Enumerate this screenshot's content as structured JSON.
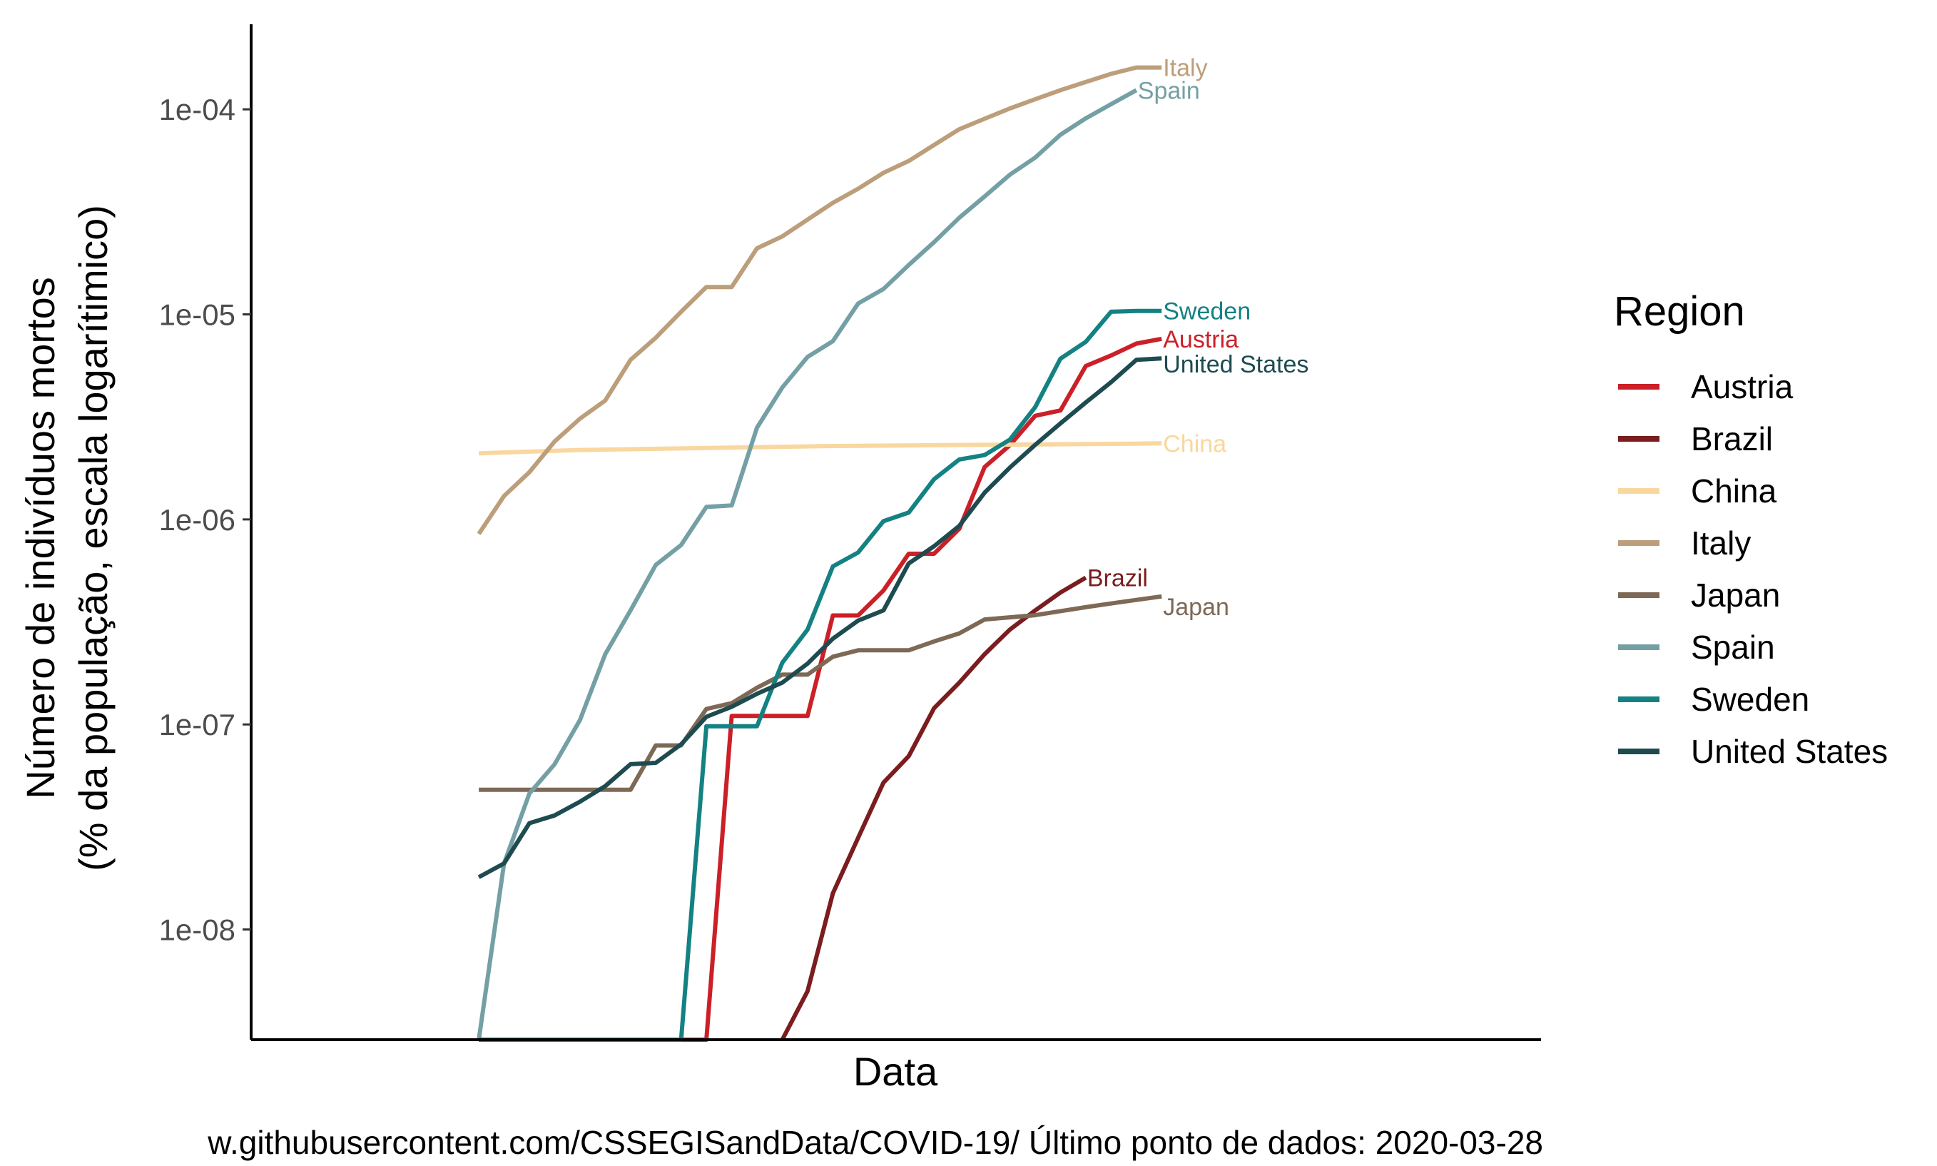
{
  "chart_data": {
    "type": "line",
    "y_scale": "log10",
    "xlabel": "Data",
    "ylabel_line1": "Número de indivíduos mortos",
    "ylabel_line2": "(% da população, escala logarítimico)",
    "caption": "w.githubusercontent.com/CSSEGISandData/COVID-19/ Último ponto de dados:  2020-03-28",
    "x_tick_labels": [],
    "y_ticks": [
      1e-08,
      1e-07,
      1e-06,
      1e-05,
      0.0001
    ],
    "y_tick_labels": [
      "1e-08",
      "1e-07",
      "1e-06",
      "1e-05",
      "1e-04"
    ],
    "x_range": [
      2,
      59
    ],
    "ylim": [
      2.9e-09,
      0.00026
    ],
    "legend": {
      "title": "Region",
      "position": "right"
    },
    "grid": false,
    "series": [
      {
        "name": "Austria",
        "color": "#CB2027",
        "label_offset": 0,
        "x": [
          20,
          21,
          22,
          23,
          24,
          25,
          26,
          27,
          28,
          29,
          30,
          31,
          32,
          33,
          34,
          35,
          36,
          37,
          38,
          39,
          40,
          41,
          42,
          43,
          44,
          45,
          46,
          47,
          48,
          49,
          50,
          51,
          52,
          53,
          54,
          55
        ],
        "y": [
          null,
          null,
          null,
          null,
          null,
          null,
          null,
          null,
          null,
          null,
          1.1e-07,
          1.1e-07,
          1.1e-07,
          1.1e-07,
          1.1e-07,
          1.1e-07,
          3.4e-07,
          3.4e-07,
          4.5e-07,
          6.8e-07,
          6.8e-07,
          9e-07,
          1.8e-06,
          2.3e-06,
          3.2e-06,
          3.4e-06,
          5.6e-06,
          6.3e-06,
          7.2e-06,
          7.6e-06,
          null,
          null,
          null,
          null,
          null,
          null
        ]
      },
      {
        "name": "Brazil",
        "color": "#7B1C1E",
        "label_offset": 0,
        "x": [
          33,
          34,
          35,
          36,
          37,
          38,
          39,
          40,
          41,
          42,
          43,
          44,
          45,
          46,
          47,
          48,
          49,
          50
        ],
        "y": [
          null,
          null,
          null,
          null,
          null,
          null,
          null,
          null,
          5e-09,
          1.5e-08,
          2.8e-08,
          5.2e-08,
          7e-08,
          1.2e-07,
          1.6e-07,
          2.2e-07,
          3e-07,
          4.4e-07
        ]
      },
      {
        "name": "China",
        "color": "#F9D79F",
        "label_offset": 0,
        "x": [
          2,
          59
        ],
        "y": [
          null,
          null
        ]
      },
      {
        "name": "Italy",
        "color": "#BC9E7A",
        "label_offset": 0,
        "x": [
          20
        ],
        "y": [
          null
        ]
      },
      {
        "name": "Japan",
        "color": "#7D6955",
        "label_offset": 14,
        "x": [
          20
        ],
        "y": [
          null
        ]
      },
      {
        "name": "Spain",
        "color": "#74A0A5",
        "label_offset": 0,
        "x": [
          20
        ],
        "y": [
          null
        ]
      },
      {
        "name": "Sweden",
        "color": "#148182",
        "label_offset": 0,
        "x": [
          20
        ],
        "y": [
          null
        ]
      },
      {
        "name": "United States",
        "color": "#1D4B50",
        "label_offset": 8,
        "x": [
          20
        ],
        "y": [
          null
        ]
      }
    ]
  }
}
